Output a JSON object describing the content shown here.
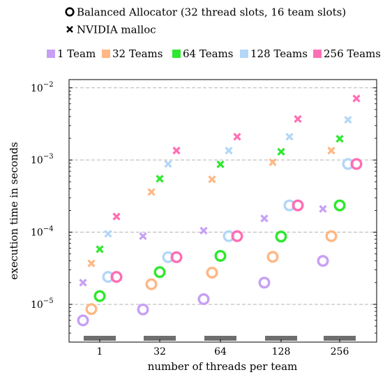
{
  "chart_data": {
    "type": "scatter",
    "x_axis": {
      "label": "number of threads per team",
      "categories": [
        "1",
        "32",
        "64",
        "128",
        "256"
      ]
    },
    "y_axis": {
      "label": "execution time in seconds",
      "scale": "log",
      "range": [
        3e-06,
        0.013
      ],
      "ticks": [
        {
          "value": 1e-05,
          "base": "10",
          "exp": "−5"
        },
        {
          "value": 0.0001,
          "base": "10",
          "exp": "−4"
        },
        {
          "value": 0.001,
          "base": "10",
          "exp": "−3"
        },
        {
          "value": 0.01,
          "base": "10",
          "exp": "−2"
        }
      ]
    },
    "grid": "horizontal dashed",
    "markers": [
      {
        "label": "Balanced Allocator (32 thread slots, 16 team slots)",
        "shape": "circle"
      },
      {
        "label": "NVIDIA malloc",
        "shape": "cross"
      }
    ],
    "series": [
      {
        "name": "1 Team",
        "color": "#c7a0f5",
        "balanced_allocator": [
          6e-06,
          8.5e-06,
          1.18e-05,
          2e-05,
          4e-05
        ],
        "nvidia_malloc": [
          2e-05,
          8.8e-05,
          0.000105,
          0.000155,
          0.00021
        ]
      },
      {
        "name": "32 Teams",
        "color": "#ffb784",
        "balanced_allocator": [
          8.6e-06,
          1.9e-05,
          2.75e-05,
          4.55e-05,
          8.8e-05
        ],
        "nvidia_malloc": [
          3.7e-05,
          0.00036,
          0.00054,
          0.00093,
          0.00135
        ]
      },
      {
        "name": "64 Teams",
        "color": "#2ee82e",
        "balanced_allocator": [
          1.3e-05,
          2.8e-05,
          4.7e-05,
          8.7e-05,
          0.000235
        ],
        "nvidia_malloc": [
          5.8e-05,
          0.00055,
          0.00087,
          0.0013,
          0.00197
        ]
      },
      {
        "name": "128 Teams",
        "color": "#b3d7f7",
        "balanced_allocator": [
          2.4e-05,
          4.5e-05,
          8.8e-05,
          0.000235,
          0.00088
        ],
        "nvidia_malloc": [
          9.5e-05,
          0.00088,
          0.00135,
          0.0021,
          0.0036
        ]
      },
      {
        "name": "256 Teams",
        "color": "#ff6eb4",
        "balanced_allocator": [
          2.4e-05,
          4.5e-05,
          8.8e-05,
          0.000235,
          0.00088
        ],
        "nvidia_malloc": [
          0.000165,
          0.00135,
          0.0021,
          0.0037,
          0.0071
        ]
      }
    ],
    "x_tick_bar_color": "#6e6e6e"
  }
}
